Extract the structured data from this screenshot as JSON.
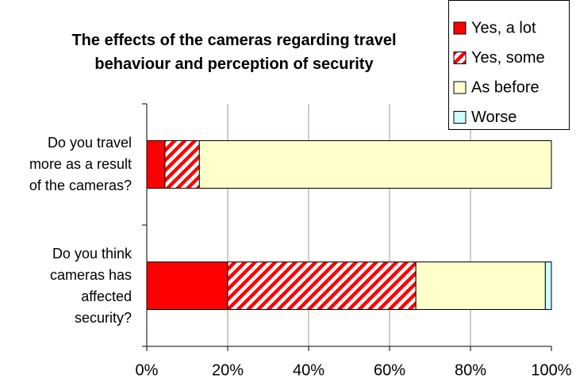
{
  "chart_data": {
    "type": "stacked_barh",
    "title": "The effects of the cameras regarding  travel\nbehaviour and perception  of security",
    "categories": [
      "Do you travel\nmore as a result\nof the cameras?",
      "Do you think\ncameras has\naffected\nsecurity?"
    ],
    "series": [
      {
        "name": "Yes, a lot",
        "color": "#ff0000",
        "pattern": "solid",
        "values": [
          4.5,
          20
        ]
      },
      {
        "name": "Yes, some",
        "color": "#ff0000",
        "pattern": "hatch",
        "values": [
          8.5,
          46.5
        ]
      },
      {
        "name": "As before",
        "color": "#ffffcc",
        "pattern": "solid",
        "values": [
          87,
          32
        ]
      },
      {
        "name": "Worse",
        "color": "#ccffff",
        "pattern": "solid",
        "values": [
          0,
          1.5
        ]
      }
    ],
    "xlim": [
      0,
      100
    ],
    "xticks": [
      {
        "value": 0,
        "label": "0%"
      },
      {
        "value": 20,
        "label": "20%"
      },
      {
        "value": 40,
        "label": "40%"
      },
      {
        "value": 60,
        "label": "60%"
      },
      {
        "value": 80,
        "label": "80%"
      },
      {
        "value": 100,
        "label": "100%"
      }
    ],
    "grid": true,
    "legend": "top-right"
  }
}
